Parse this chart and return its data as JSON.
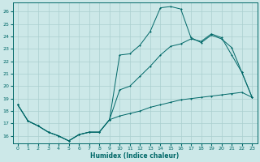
{
  "xlabel": "Humidex (Indice chaleur)",
  "bg_color": "#cce8e8",
  "grid_color": "#aacfcf",
  "line_color": "#006868",
  "xlim": [
    -0.5,
    23.5
  ],
  "ylim": [
    15.4,
    26.7
  ],
  "yticks": [
    16,
    17,
    18,
    19,
    20,
    21,
    22,
    23,
    24,
    25,
    26
  ],
  "xticks": [
    0,
    1,
    2,
    3,
    4,
    5,
    6,
    7,
    8,
    9,
    10,
    11,
    12,
    13,
    14,
    15,
    16,
    17,
    18,
    19,
    20,
    21,
    22,
    23
  ],
  "line1_x": [
    0,
    1,
    2,
    3,
    4,
    5,
    6,
    7,
    8,
    9,
    10,
    11,
    12,
    13,
    14,
    15,
    16,
    17,
    18,
    19,
    20,
    21,
    22,
    23
  ],
  "line1_y": [
    18.5,
    17.2,
    16.8,
    16.3,
    16.0,
    15.6,
    16.1,
    16.3,
    16.3,
    17.3,
    22.5,
    22.6,
    23.3,
    24.4,
    26.3,
    26.4,
    26.2,
    23.9,
    23.5,
    24.1,
    23.8,
    23.1,
    21.1,
    19.1
  ],
  "line2_x": [
    0,
    1,
    2,
    3,
    4,
    5,
    6,
    7,
    8,
    9,
    10,
    11,
    12,
    13,
    14,
    15,
    16,
    17,
    18,
    19,
    20,
    21,
    22,
    23
  ],
  "line2_y": [
    18.5,
    17.2,
    16.8,
    16.3,
    16.0,
    15.6,
    16.1,
    16.3,
    16.3,
    17.3,
    19.7,
    20.0,
    20.8,
    21.6,
    22.5,
    23.2,
    23.4,
    23.8,
    23.6,
    24.2,
    23.9,
    22.5,
    21.1,
    19.1
  ],
  "line3_x": [
    0,
    1,
    2,
    3,
    4,
    5,
    6,
    7,
    8,
    9,
    10,
    11,
    12,
    13,
    14,
    15,
    16,
    17,
    18,
    19,
    20,
    21,
    22,
    23
  ],
  "line3_y": [
    18.5,
    17.2,
    16.8,
    16.3,
    16.0,
    15.6,
    16.1,
    16.3,
    16.3,
    17.3,
    17.6,
    17.8,
    18.0,
    18.3,
    18.5,
    18.7,
    18.9,
    19.0,
    19.1,
    19.2,
    19.3,
    19.4,
    19.5,
    19.1
  ]
}
